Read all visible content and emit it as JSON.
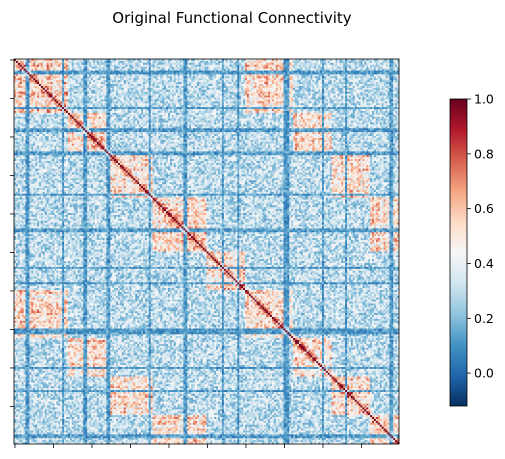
{
  "chart_data": {
    "type": "heatmap",
    "title": "Original Functional Connectivity",
    "xlabel": "",
    "ylabel": "",
    "n_regions": 200,
    "x_tick_labels_shown": false,
    "y_tick_labels_shown": false,
    "diagonal_value": 1.0,
    "colormap": "RdBu_r",
    "color_range": [
      -0.12,
      1.0
    ],
    "colorbar": {
      "ticks": [
        -0.0,
        0.2,
        0.4,
        0.6,
        0.8,
        1.0
      ],
      "tick_labels": [
        "0.0",
        "0.2",
        "0.4",
        "0.6",
        "0.8",
        "1.0"
      ]
    },
    "colorbar_stops": [
      "#053061",
      "#2166ac",
      "#4393c3",
      "#92c5de",
      "#d1e5f0",
      "#f7f7f7",
      "#fddbc7",
      "#f4a582",
      "#d6604d",
      "#b2182b",
      "#67001f"
    ]
  }
}
